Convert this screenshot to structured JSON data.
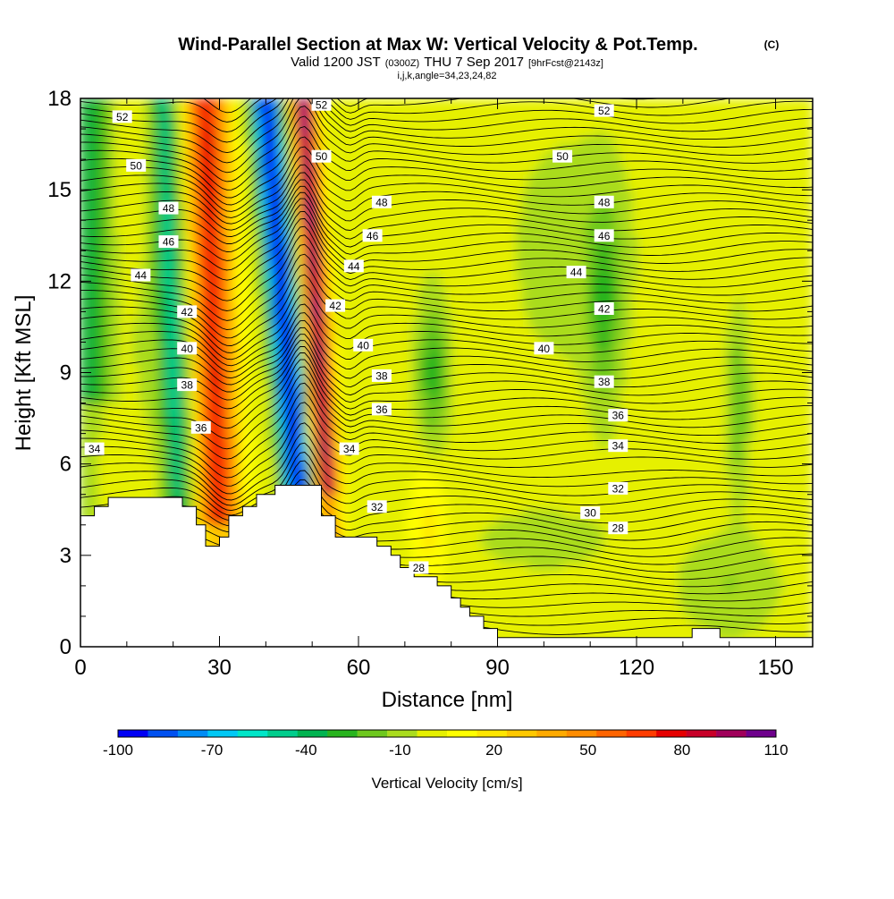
{
  "title": "Wind-Parallel Section at Max W: Vertical Velocity & Pot.Temp.",
  "title_unit": "(C)",
  "subtitle_prefix": "Valid 1200 JST",
  "subtitle_utc": "(0300Z)",
  "subtitle_date": "THU 7 Sep 2017",
  "subtitle_forecast": "[9hrFcst@2143z]",
  "subtitle_indices": "i,j,k,angle=34,23,24,82",
  "chart_data": {
    "type": "heatmap",
    "title": "Wind-Parallel Section at Max W: Vertical Velocity & Pot.Temp.",
    "xlabel": "Distance [nm]",
    "ylabel": "Height [Kft MSL]",
    "xlim": [
      0,
      158
    ],
    "ylim": [
      0,
      18
    ],
    "x_ticks": [
      "0",
      "30",
      "60",
      "90",
      "120",
      "150"
    ],
    "y_ticks": [
      "0",
      "3",
      "6",
      "9",
      "12",
      "15",
      "18"
    ],
    "colorbar": {
      "label": "Vertical Velocity [cm/s]",
      "tick_labels": [
        "-100",
        "-70",
        "-40",
        "-10",
        "20",
        "50",
        "80",
        "110"
      ],
      "levels": [
        -100,
        -90,
        -80,
        -70,
        -60,
        -50,
        -40,
        -30,
        -20,
        -10,
        0,
        10,
        20,
        30,
        40,
        50,
        60,
        70,
        80,
        90,
        100,
        110
      ],
      "colors": [
        "#0000f5",
        "#0050f0",
        "#008cf5",
        "#00c8f5",
        "#00e6c8",
        "#00cd8c",
        "#00b450",
        "#28b41e",
        "#6ec81e",
        "#aadc1e",
        "#e6f000",
        "#ffff00",
        "#ffe600",
        "#ffc800",
        "#ffaa00",
        "#ff8c00",
        "#ff6400",
        "#ff3c00",
        "#e60000",
        "#c80028",
        "#a0005a",
        "#6e008c"
      ]
    },
    "vertical_velocity_features": [
      {
        "kind": "updraft",
        "x_bottom": 30,
        "x_top": 27,
        "peak_cm_s": 80
      },
      {
        "kind": "downdraft",
        "x_bottom": 48,
        "x_top": 40,
        "min_cm_s": -100
      },
      {
        "kind": "updraft",
        "x_bottom": 54,
        "x_top": 48,
        "peak_cm_s": 110
      }
    ],
    "theta_contour_labels": [
      {
        "text": "52",
        "x": 9,
        "y": 17.4
      },
      {
        "text": "50",
        "x": 12,
        "y": 15.8
      },
      {
        "text": "48",
        "x": 19,
        "y": 14.4
      },
      {
        "text": "46",
        "x": 19,
        "y": 13.3
      },
      {
        "text": "44",
        "x": 13,
        "y": 12.2
      },
      {
        "text": "42",
        "x": 23,
        "y": 11.0
      },
      {
        "text": "40",
        "x": 23,
        "y": 9.8
      },
      {
        "text": "38",
        "x": 23,
        "y": 8.6
      },
      {
        "text": "36",
        "x": 26,
        "y": 7.2
      },
      {
        "text": "34",
        "x": 3,
        "y": 6.5
      },
      {
        "text": "52",
        "x": 52,
        "y": 17.8
      },
      {
        "text": "50",
        "x": 52,
        "y": 16.1
      },
      {
        "text": "48",
        "x": 65,
        "y": 14.6
      },
      {
        "text": "46",
        "x": 63,
        "y": 13.5
      },
      {
        "text": "44",
        "x": 59,
        "y": 12.5
      },
      {
        "text": "42",
        "x": 55,
        "y": 11.2
      },
      {
        "text": "40",
        "x": 61,
        "y": 9.9
      },
      {
        "text": "38",
        "x": 65,
        "y": 8.9
      },
      {
        "text": "36",
        "x": 65,
        "y": 7.8
      },
      {
        "text": "34",
        "x": 58,
        "y": 6.5
      },
      {
        "text": "32",
        "x": 64,
        "y": 4.6
      },
      {
        "text": "28",
        "x": 73,
        "y": 2.6
      },
      {
        "text": "52",
        "x": 113,
        "y": 17.6
      },
      {
        "text": "50",
        "x": 104,
        "y": 16.1
      },
      {
        "text": "48",
        "x": 113,
        "y": 14.6
      },
      {
        "text": "46",
        "x": 113,
        "y": 13.5
      },
      {
        "text": "44",
        "x": 107,
        "y": 12.3
      },
      {
        "text": "42",
        "x": 113,
        "y": 11.1
      },
      {
        "text": "40",
        "x": 100,
        "y": 9.8
      },
      {
        "text": "38",
        "x": 113,
        "y": 8.7
      },
      {
        "text": "36",
        "x": 116,
        "y": 7.6
      },
      {
        "text": "34",
        "x": 116,
        "y": 6.6
      },
      {
        "text": "32",
        "x": 116,
        "y": 5.2
      },
      {
        "text": "30",
        "x": 110,
        "y": 4.4
      },
      {
        "text": "28",
        "x": 116,
        "y": 3.9
      }
    ],
    "terrain_profile": [
      [
        0,
        4.3
      ],
      [
        3,
        4.3
      ],
      [
        3,
        4.6
      ],
      [
        6,
        4.6
      ],
      [
        6,
        4.9
      ],
      [
        22,
        4.9
      ],
      [
        22,
        4.6
      ],
      [
        25,
        4.6
      ],
      [
        25,
        4.0
      ],
      [
        27,
        4.0
      ],
      [
        27,
        3.3
      ],
      [
        30,
        3.3
      ],
      [
        30,
        3.6
      ],
      [
        32,
        3.6
      ],
      [
        32,
        4.3
      ],
      [
        35,
        4.3
      ],
      [
        35,
        4.6
      ],
      [
        38,
        4.6
      ],
      [
        38,
        5.0
      ],
      [
        42,
        5.0
      ],
      [
        42,
        5.3
      ],
      [
        52,
        5.3
      ],
      [
        52,
        4.3
      ],
      [
        55,
        4.3
      ],
      [
        55,
        3.6
      ],
      [
        64,
        3.6
      ],
      [
        64,
        3.3
      ],
      [
        67,
        3.3
      ],
      [
        67,
        3.0
      ],
      [
        69,
        3.0
      ],
      [
        69,
        2.6
      ],
      [
        72,
        2.6
      ],
      [
        72,
        2.3
      ],
      [
        77,
        2.3
      ],
      [
        77,
        2.0
      ],
      [
        80,
        2.0
      ],
      [
        80,
        1.6
      ],
      [
        82,
        1.6
      ],
      [
        82,
        1.3
      ],
      [
        84,
        1.3
      ],
      [
        84,
        1.0
      ],
      [
        87,
        1.0
      ],
      [
        87,
        0.6
      ],
      [
        90,
        0.6
      ],
      [
        90,
        0.3
      ],
      [
        132,
        0.3
      ],
      [
        132,
        0.6
      ],
      [
        138,
        0.6
      ],
      [
        138,
        0.3
      ],
      [
        158,
        0.3
      ]
    ]
  }
}
